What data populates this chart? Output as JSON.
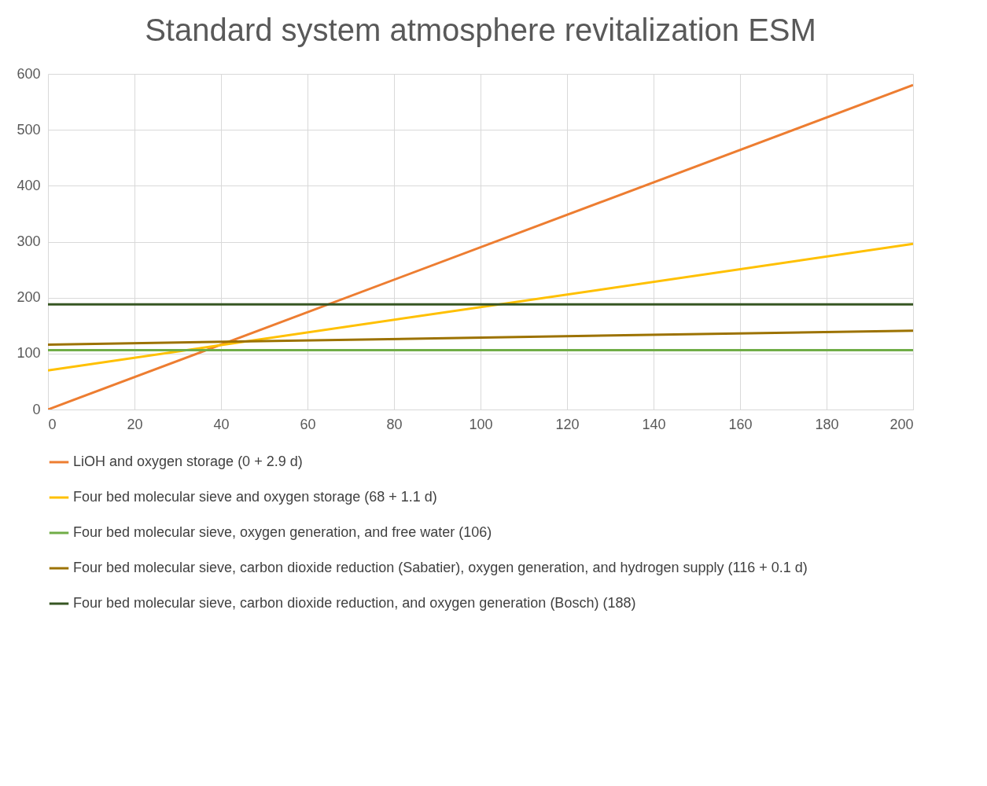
{
  "chart_data": {
    "type": "line",
    "title": "Standard system atmosphere revitalization ESM",
    "x": [
      0,
      200
    ],
    "xlim": [
      0,
      200
    ],
    "xticks": [
      0,
      20,
      40,
      60,
      80,
      100,
      120,
      140,
      160,
      180,
      200
    ],
    "ylim": [
      0,
      600
    ],
    "yticks": [
      0,
      100,
      200,
      300,
      400,
      500,
      600
    ],
    "series": [
      {
        "name": "LiOH and oxygen storage (0 + 2.9 d)",
        "color": "#ed7d31",
        "values": [
          0,
          580
        ]
      },
      {
        "name": "Four bed molecular sieve and oxygen storage (68 + 1.1 d)",
        "color": "#ffc000",
        "values": [
          70,
          296
        ]
      },
      {
        "name": "Four bed molecular sieve, oxygen generation, and free water (106)",
        "color": "#70ad47",
        "values": [
          106,
          106
        ]
      },
      {
        "name": "Four bed molecular sieve, carbon dioxide reduction (Sabatier), oxygen generation, and hydrogen supply (116 + 0.1 d)",
        "color": "#9c7200",
        "values": [
          116,
          141
        ]
      },
      {
        "name": "Four bed molecular sieve, carbon dioxide reduction, and oxygen generation (Bosch) (188)",
        "color": "#375623",
        "values": [
          188,
          188
        ]
      }
    ],
    "grid": true,
    "legend": "bottom",
    "marker": "none",
    "line_style": "solid"
  }
}
